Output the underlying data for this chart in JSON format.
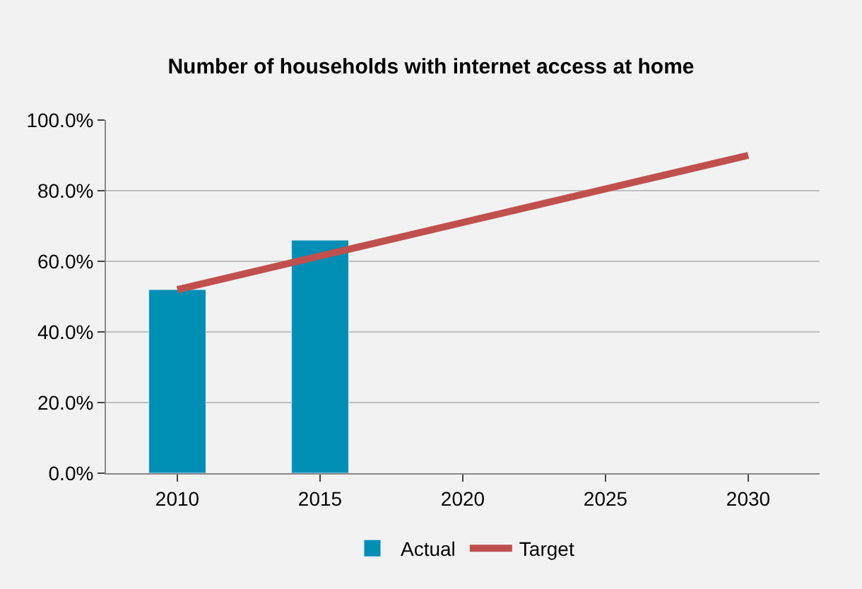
{
  "chart_data": {
    "type": "bar",
    "title": "Number of households with internet access at home",
    "categories": [
      "2010",
      "2015",
      "2020",
      "2025",
      "2030"
    ],
    "series": [
      {
        "name": "Actual",
        "color": "#008fb4",
        "values": [
          52,
          66,
          null,
          null,
          null
        ]
      },
      {
        "name": "Target",
        "type": "line",
        "color": "#c0504d",
        "marker": "none",
        "values": [
          52,
          61.5,
          71,
          80.5,
          90
        ]
      }
    ],
    "ylim": [
      0,
      100
    ],
    "yticks": [
      {
        "value": 0,
        "label": "0.0%"
      },
      {
        "value": 20,
        "label": "20.0%"
      },
      {
        "value": 40,
        "label": "40.0%"
      },
      {
        "value": 60,
        "label": "60.0%"
      },
      {
        "value": 80,
        "label": "80.0%"
      },
      {
        "value": 100,
        "label": "100.0%"
      }
    ],
    "grid": "y",
    "legend": "bottom"
  }
}
